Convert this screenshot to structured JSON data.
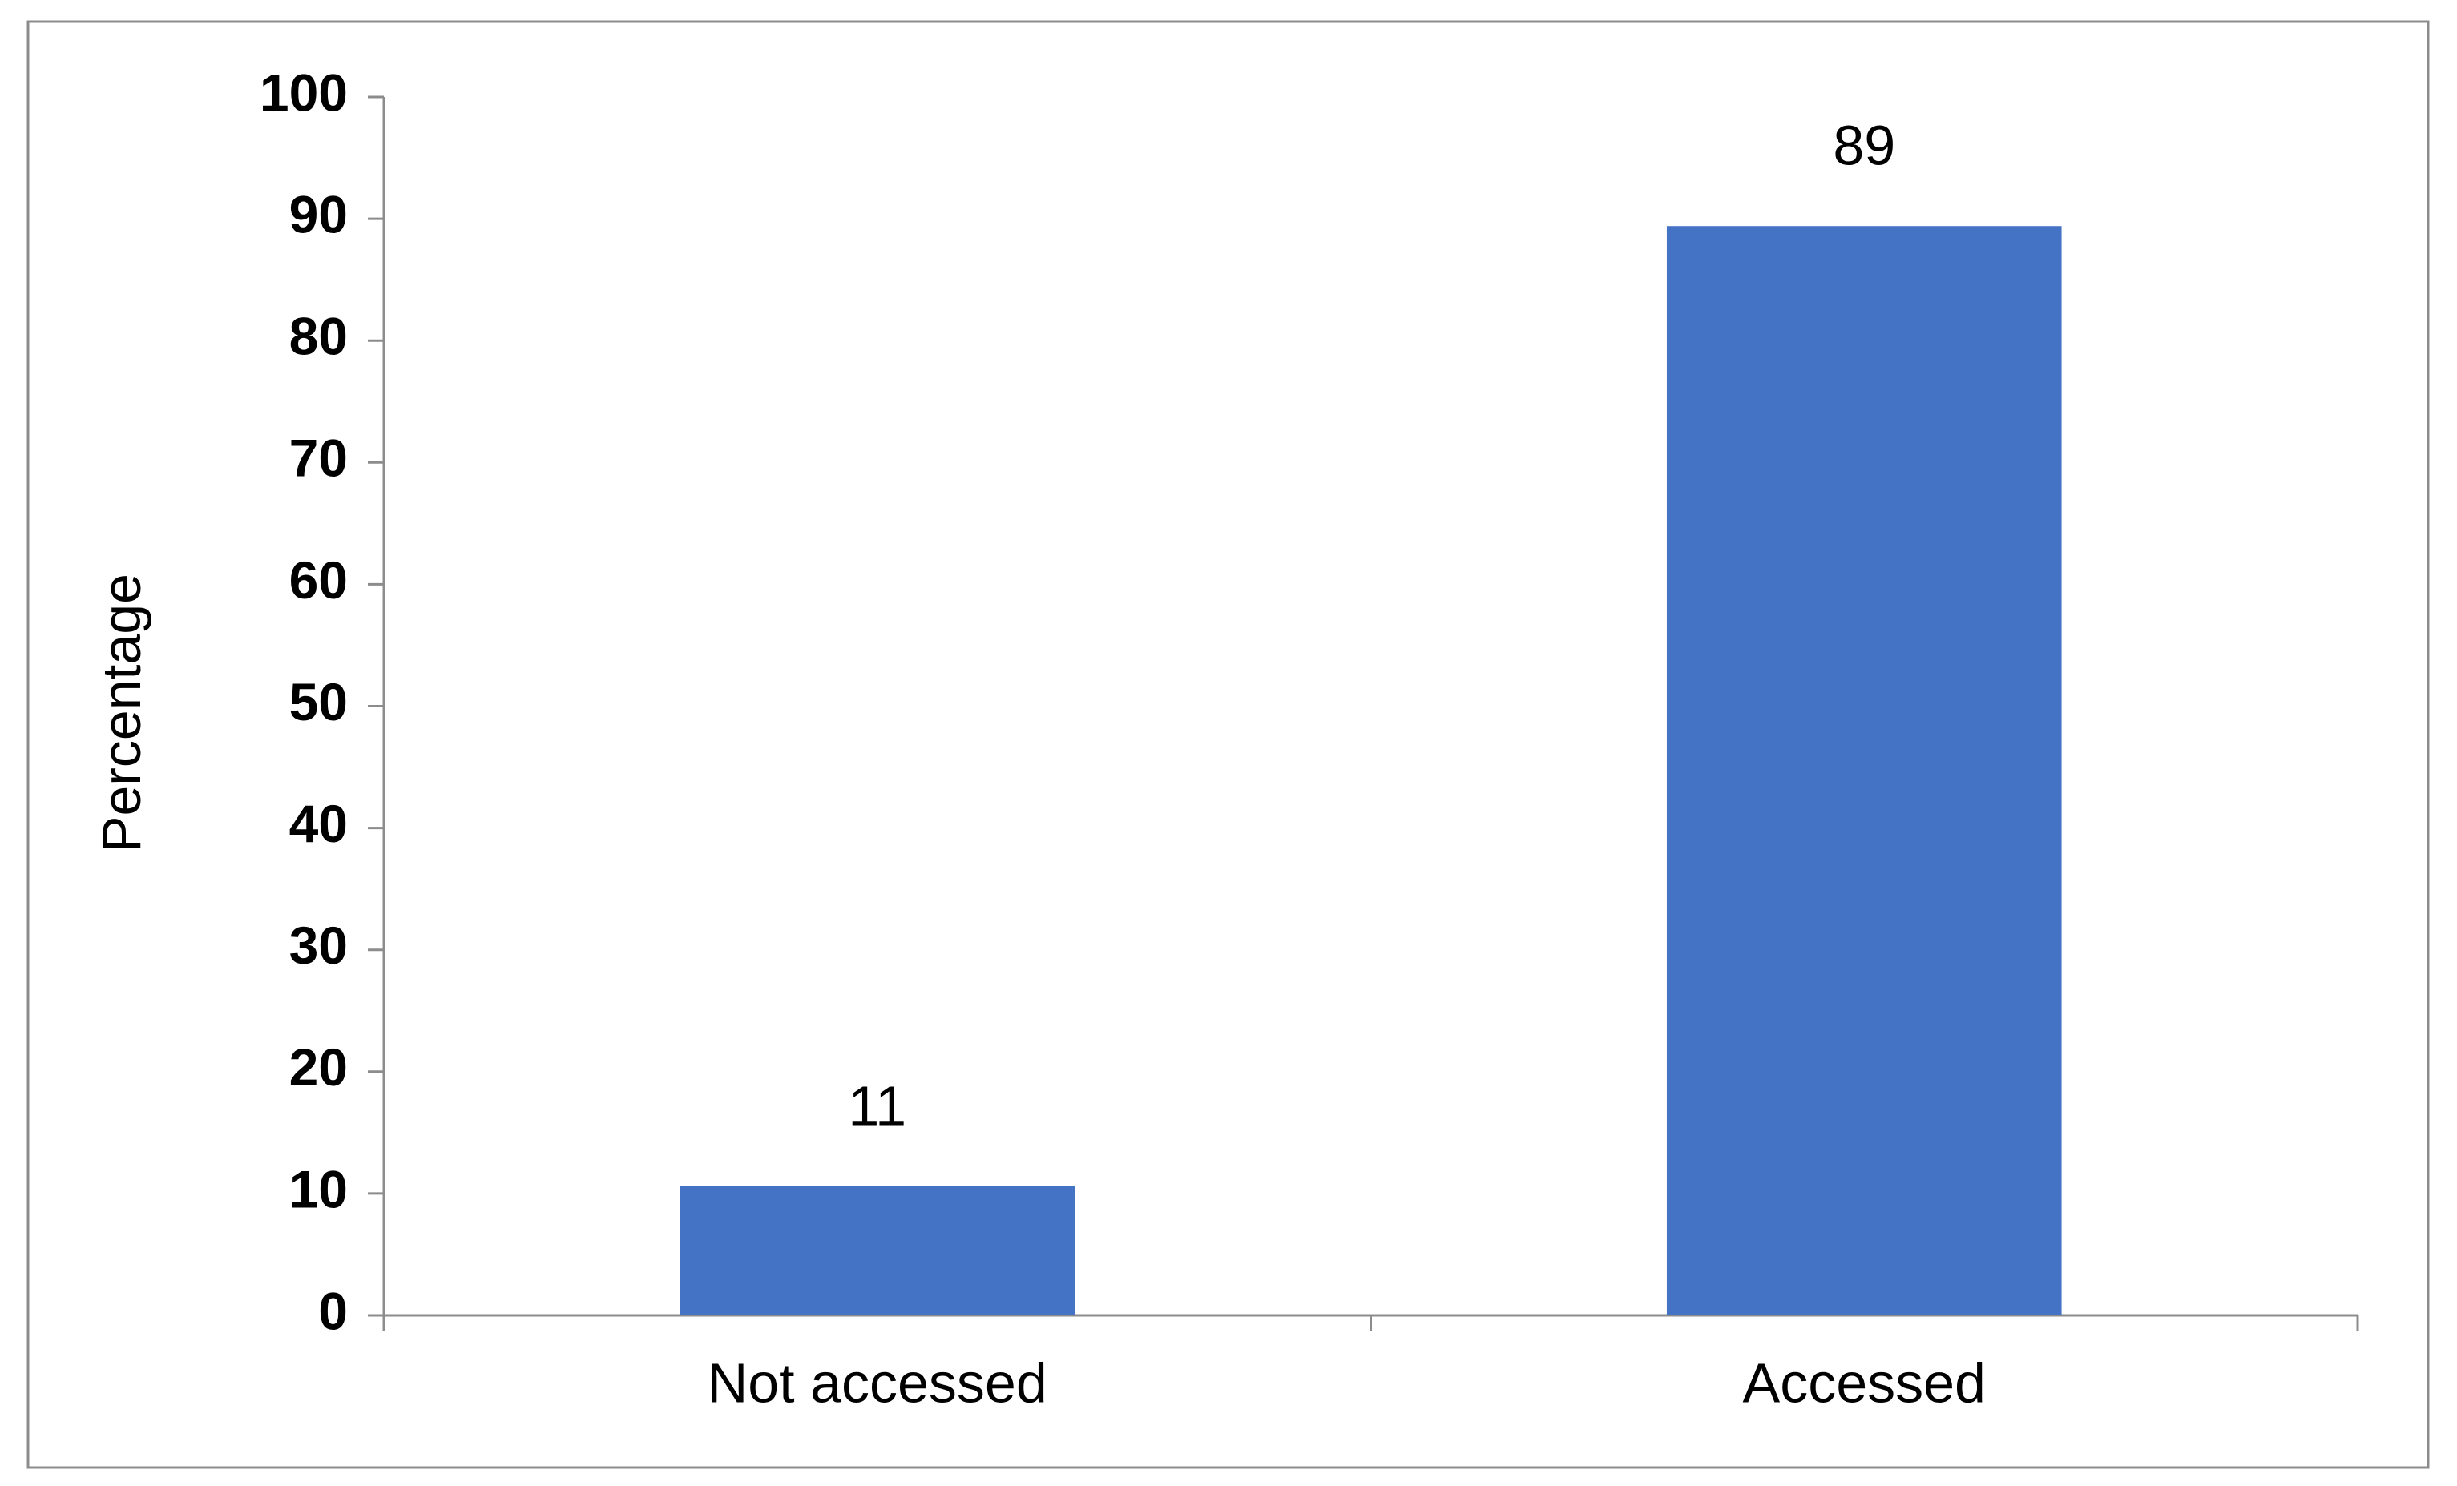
{
  "chart_data": {
    "type": "bar",
    "ylabel": "Percentage",
    "categories": [
      "Not accessed",
      "Accessed"
    ],
    "values": [
      10.6,
      89.4
    ],
    "value_labels": [
      "11",
      "89"
    ],
    "color": "#4472c4",
    "ylim": [
      0,
      100
    ],
    "yticks": [
      0,
      10,
      20,
      30,
      40,
      50,
      60,
      70,
      80,
      90,
      100
    ]
  }
}
